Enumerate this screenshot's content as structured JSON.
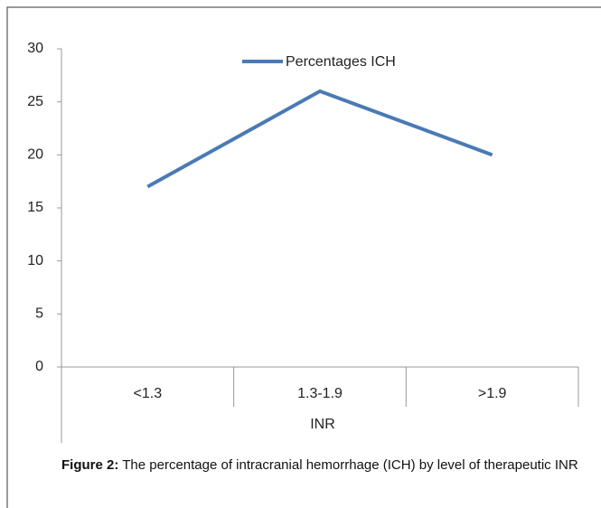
{
  "chart_data": {
    "type": "line",
    "x_label": "INR",
    "categories": [
      "<1.3",
      "1.3-1.9",
      ">1.9"
    ],
    "series": [
      {
        "name": "Percentages ICH",
        "color": "#4a7ab5",
        "values": [
          17,
          26,
          20
        ]
      }
    ],
    "ylim": [
      0,
      30
    ],
    "yticks": [
      0,
      5,
      10,
      15,
      20,
      25,
      30
    ],
    "grid": false,
    "legend": "top"
  },
  "caption": {
    "label": "Figure 2:",
    "text": "The percentage of intracranial hemorrhage (ICH) by level of therapeutic INR"
  }
}
